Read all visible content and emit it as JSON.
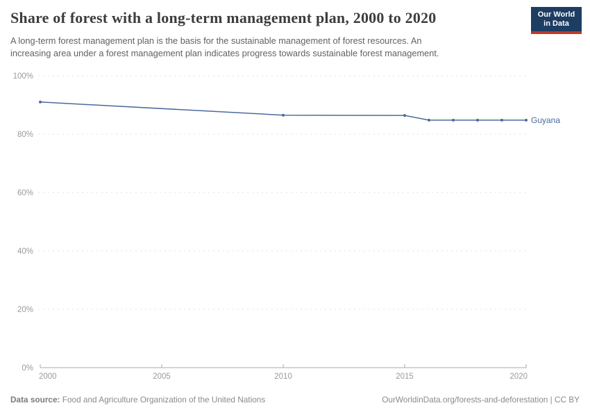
{
  "header": {
    "title": "Share of forest with a long-term management plan, 2000 to 2020",
    "subtitle_lines": [
      "A long-term forest management plan is the basis for the sustainable management of forest resources. An",
      "increasing area under a forest management plan indicates progress towards sustainable forest management."
    ],
    "logo": {
      "line1": "Our World",
      "line2": "in Data"
    }
  },
  "chart_data": {
    "type": "line",
    "title": "Share of forest with a long-term management plan, 2000 to 2020",
    "series": [
      {
        "name": "Guyana",
        "x": [
          2000,
          2010,
          2015,
          2016,
          2017,
          2018,
          2019,
          2020
        ],
        "values": [
          91.0,
          86.5,
          86.4,
          84.8,
          84.8,
          84.8,
          84.8,
          84.8
        ],
        "color": "#4C6A9C"
      }
    ],
    "entity_label": "Guyana",
    "xlabel": "",
    "ylabel": "",
    "xlim": [
      2000,
      2020
    ],
    "ylim": [
      0,
      100
    ],
    "x_ticks": [
      2000,
      2005,
      2010,
      2015,
      2020
    ],
    "y_ticks": [
      0,
      20,
      40,
      60,
      80,
      100
    ],
    "y_tick_suffix": "%",
    "grid": "horizontal-dashed",
    "legend_position": "end-of-line"
  },
  "footer": {
    "datasource_label": "Data source:",
    "datasource_value": " Food and Agriculture Organization of the United Nations",
    "credit": "OurWorldinData.org/forests-and-deforestation | CC BY"
  },
  "colors": {
    "line": "#4C6A9C",
    "title": "#3d3d3d",
    "subtitle": "#616161",
    "axis_text": "#9a9a9a",
    "axis_line": "#a8a8a8",
    "gridline": "#e0e0e0",
    "logo_bg": "#1d3d63",
    "logo_red": "#c0392b",
    "footer_text": "#8a8a8a"
  }
}
